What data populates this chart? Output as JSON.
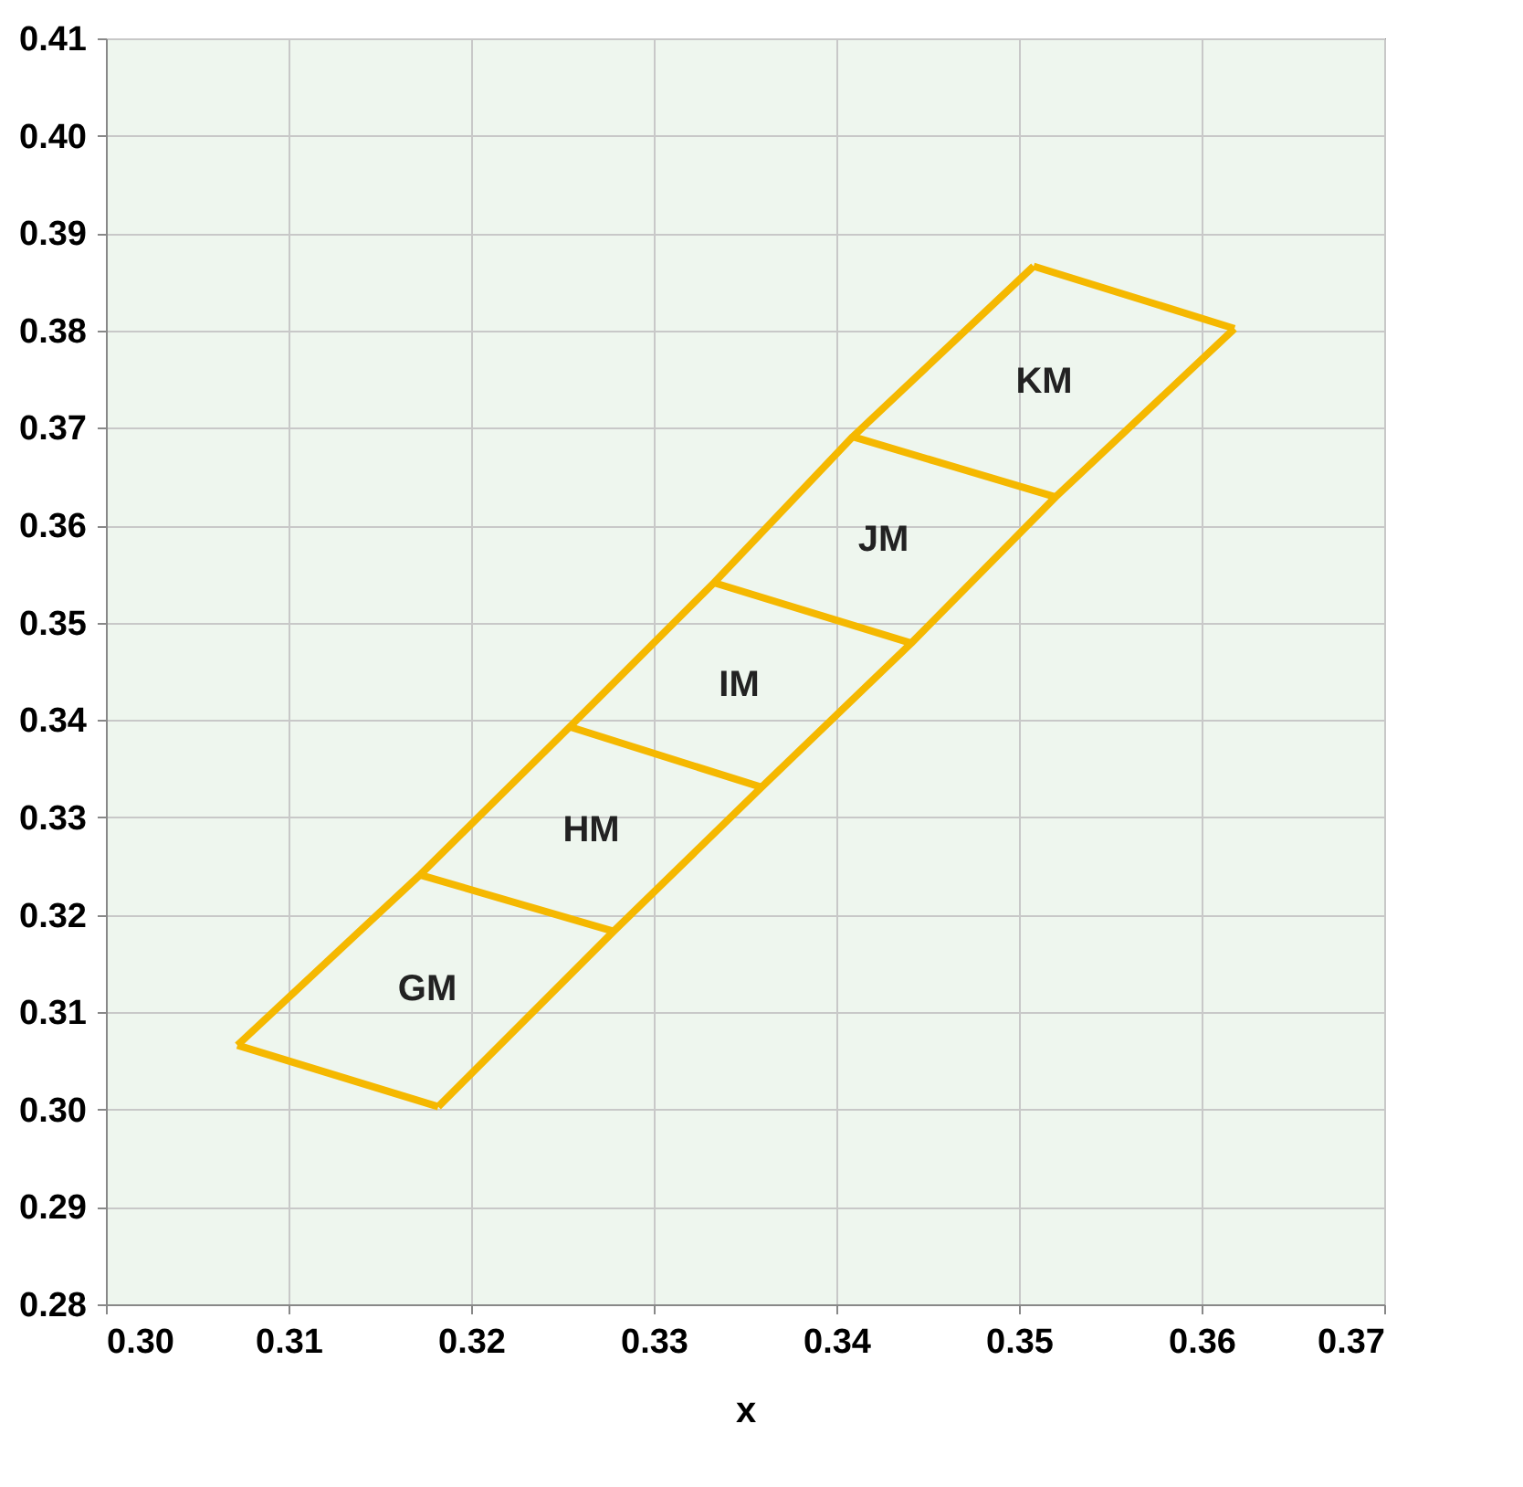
{
  "chart_data": {
    "type": "line",
    "xlabel": "x",
    "xlim": [
      0.3,
      0.37
    ],
    "ylim": [
      0.28,
      0.41
    ],
    "xticks": [
      {
        "value": 0.3,
        "label": "0.30"
      },
      0.31,
      0.32,
      0.33,
      0.34,
      0.35,
      0.36,
      0.37
    ],
    "yticks": [
      0.28,
      0.29,
      {
        "value": 0.3,
        "label": "0.30"
      },
      0.31,
      0.32,
      0.33,
      0.34,
      0.35,
      0.36,
      0.37,
      0.38,
      0.39,
      {
        "value": 0.4,
        "label": "0.40"
      },
      0.41
    ],
    "grid": true,
    "marker": "none",
    "line_style": "solid",
    "series": [
      {
        "color": "#f5b800",
        "x": [
          0.3072,
          0.3172,
          0.3254,
          0.3333,
          0.3409,
          0.3508
        ],
        "values": [
          0.3066,
          0.3241,
          0.3393,
          0.3541,
          0.3691,
          0.3866
        ]
      },
      {
        "color": "#f5b800",
        "x": [
          0.3182,
          0.3278,
          0.3359,
          0.3441,
          0.352,
          0.3618
        ],
        "values": [
          0.3003,
          0.3183,
          0.3331,
          0.3479,
          0.3629,
          0.3802
        ]
      },
      {
        "color": "#f5b800",
        "x": [
          0.3072,
          0.3182
        ],
        "values": [
          0.3066,
          0.3003
        ]
      },
      {
        "color": "#f5b800",
        "x": [
          0.3172,
          0.3278
        ],
        "values": [
          0.3241,
          0.3183
        ]
      },
      {
        "color": "#f5b800",
        "x": [
          0.3254,
          0.3359
        ],
        "values": [
          0.3393,
          0.3331
        ]
      },
      {
        "color": "#f5b800",
        "x": [
          0.3333,
          0.3441
        ],
        "values": [
          0.3541,
          0.3479
        ]
      },
      {
        "color": "#f5b800",
        "x": [
          0.3409,
          0.352
        ],
        "values": [
          0.3691,
          0.3629
        ]
      },
      {
        "color": "#f5b800",
        "x": [
          0.3508,
          0.3618
        ],
        "values": [
          0.3866,
          0.3802
        ]
      }
    ],
    "annotations": [
      "GM",
      "HM",
      "IM",
      "JM",
      "KM"
    ]
  }
}
